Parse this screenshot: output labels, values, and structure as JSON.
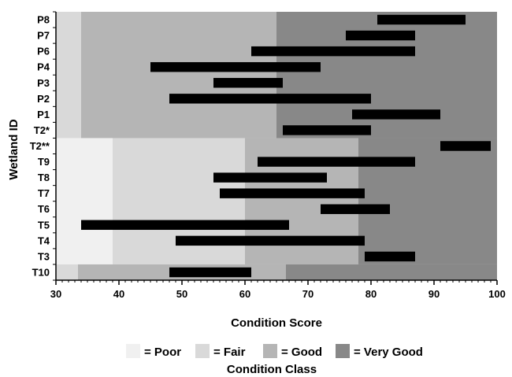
{
  "chart_data": {
    "type": "bar",
    "orientation": "horizontal-range",
    "xlabel": "Condition Score",
    "ylabel": "Wetland ID",
    "xlim": [
      30,
      100
    ],
    "x_ticks": [
      30,
      40,
      50,
      60,
      70,
      80,
      90,
      100
    ],
    "categories": [
      "P8",
      "P7",
      "P6",
      "P4",
      "P3",
      "P2",
      "P1",
      "T2*",
      "T2**",
      "T9",
      "T8",
      "T7",
      "T6",
      "T5",
      "T4",
      "T3",
      "T10"
    ],
    "ranges": [
      {
        "id": "P8",
        "min": 81,
        "max": 95
      },
      {
        "id": "P7",
        "min": 76,
        "max": 87
      },
      {
        "id": "P6",
        "min": 61,
        "max": 87
      },
      {
        "id": "P4",
        "min": 45,
        "max": 72
      },
      {
        "id": "P3",
        "min": 55,
        "max": 66
      },
      {
        "id": "P2",
        "min": 48,
        "max": 80
      },
      {
        "id": "P1",
        "min": 77,
        "max": 91
      },
      {
        "id": "T2*",
        "min": 66,
        "max": 80
      },
      {
        "id": "T2**",
        "min": 91,
        "max": 99
      },
      {
        "id": "T9",
        "min": 62,
        "max": 87
      },
      {
        "id": "T8",
        "min": 55,
        "max": 73
      },
      {
        "id": "T7",
        "min": 56,
        "max": 79
      },
      {
        "id": "T6",
        "min": 72,
        "max": 83
      },
      {
        "id": "T5",
        "min": 34,
        "max": 67
      },
      {
        "id": "T4",
        "min": 49,
        "max": 79
      },
      {
        "id": "T3",
        "min": 79,
        "max": 87
      },
      {
        "id": "T10",
        "min": 48,
        "max": 61
      }
    ],
    "condition_class_title": "Condition Class",
    "condition_classes": [
      {
        "label": "= Poor",
        "color": "#f0f0f0"
      },
      {
        "label": "= Fair",
        "color": "#d9d9d9"
      },
      {
        "label": "= Good",
        "color": "#b5b5b5"
      },
      {
        "label": "= Very Good",
        "color": "#888888"
      }
    ],
    "background_bands": [
      {
        "rows": [
          "P8",
          "P7",
          "P6",
          "P4",
          "P3",
          "P2",
          "P1",
          "T2*"
        ],
        "thresholds": [
          34,
          65
        ]
      },
      {
        "rows": [
          "T2**",
          "T9",
          "T8",
          "T7",
          "T6",
          "T5",
          "T4",
          "T3"
        ],
        "thresholds": [
          39,
          60,
          78
        ]
      },
      {
        "rows": [
          "T10"
        ],
        "thresholds": [
          33.5,
          66.5
        ]
      }
    ],
    "bar_color": "#000000",
    "grid": false,
    "legend_position": "bottom"
  }
}
